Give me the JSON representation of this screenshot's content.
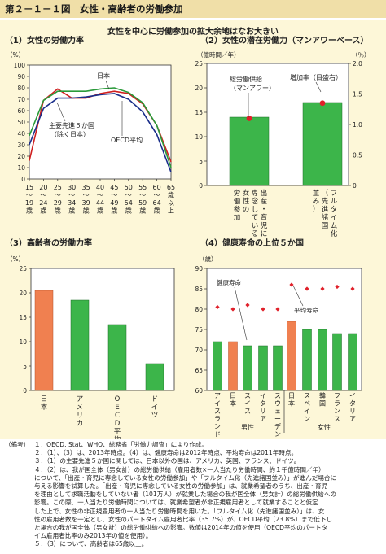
{
  "figure_title": "第２－１－１図　女性・高齢者の労働参加",
  "subtitle": "女性を中心に労働参加の拡大余地はなお大きい",
  "colors": {
    "japan": "#d02020",
    "g5": "#2a9a3a",
    "oecd": "#1a2e8a",
    "bar_green": "#3cb54a",
    "bar_orange": "#f08050",
    "dot": "#e0202a",
    "panel_bg": "#fdf7d8",
    "header_bg": "#f0dfa8"
  },
  "chart_data": [
    {
      "id": "panel1",
      "type": "line",
      "title": "（1）女性の労働力率",
      "unit": "（%）",
      "x": [
        "15~19歳",
        "20~24歳",
        "25~29歳",
        "30~34歳",
        "35~39歳",
        "40~44歳",
        "45~49歳",
        "50~54歳",
        "55~59歳",
        "60~64歳",
        "65歳以上"
      ],
      "x_labels": [
        [
          "15",
          "〜",
          "19",
          "歳"
        ],
        [
          "20",
          "〜",
          "24",
          "歳"
        ],
        [
          "25",
          "〜",
          "29",
          "歳"
        ],
        [
          "30",
          "〜",
          "34",
          "歳"
        ],
        [
          "35",
          "〜",
          "39",
          "歳"
        ],
        [
          "40",
          "〜",
          "44",
          "歳"
        ],
        [
          "45",
          "〜",
          "49",
          "歳"
        ],
        [
          "50",
          "〜",
          "54",
          "歳"
        ],
        [
          "55",
          "〜",
          "59",
          "歳"
        ],
        [
          "60",
          "〜",
          "64",
          "歳"
        ],
        [
          "65",
          "歳",
          "以",
          "上"
        ]
      ],
      "ylim": [
        0,
        100
      ],
      "yticks": [
        0,
        10,
        20,
        30,
        40,
        50,
        60,
        70,
        80,
        90,
        100
      ],
      "series": [
        {
          "name": "日本",
          "values": [
            16,
            69,
            79,
            71,
            71,
            75,
            77,
            75,
            66,
            47,
            15
          ]
        },
        {
          "name": "主要先進５か国（除く日本）",
          "values": [
            38,
            69,
            77,
            77,
            77,
            79,
            80,
            76,
            67,
            47,
            10
          ]
        },
        {
          "name": "OECD平均",
          "values": [
            30,
            62,
            71,
            71,
            72,
            74,
            75,
            70,
            59,
            39,
            6
          ]
        }
      ],
      "labels": {
        "japan": "日本",
        "g5": [
          "主要先進５か国",
          "（除く日本）"
        ],
        "oecd": "OECD平均"
      }
    },
    {
      "id": "panel2",
      "type": "bar",
      "title": "（2）女性の潜在労働力（マンアワーベース）",
      "unit_left": "（億時間／年）",
      "unit_right": "（％）",
      "categories": [
        "出産・育児に専念している女性の労働参加",
        "フルタイム化（先進諸国並み）"
      ],
      "cat_labels": [
        [
          "出",
          "産",
          "・",
          "育",
          "児",
          "に"
        ],
        [
          "専",
          "念",
          "し",
          "て",
          "い",
          "る"
        ],
        [
          "女",
          "性",
          "の"
        ],
        [
          "労",
          "働",
          "参",
          "加"
        ]
      ],
      "cat_labels2": [
        [
          "フ",
          "ル",
          "タ",
          "イ",
          "ム",
          "化"
        ],
        [
          "（",
          "先",
          "進",
          "諸",
          "国"
        ],
        [
          "並",
          "み",
          "）"
        ]
      ],
      "values": [
        14,
        17
      ],
      "increase_rate": [
        1.1,
        1.35
      ],
      "ylim": [
        0,
        25
      ],
      "yticks": [
        0,
        5,
        10,
        15,
        20,
        25
      ],
      "ylim_right": [
        0,
        2.0
      ],
      "yticks_right": [
        "0",
        "0.5",
        "1.0",
        "1.5",
        "2.0"
      ],
      "annotations": {
        "supply": "総労働供給",
        "supply2": "（マンアワー）",
        "rate": "増加率（目盛右）"
      }
    },
    {
      "id": "panel3",
      "type": "bar",
      "title": "（3）高齢者の労働力率",
      "unit": "（%）",
      "categories": [
        "日本",
        "アメリカ",
        "OECD平均",
        "ドイツ"
      ],
      "cat_labels": [
        [
          "日",
          "本"
        ],
        [
          "ア",
          "メ",
          "リ",
          "カ"
        ],
        [
          "O",
          "E",
          "C",
          "D",
          "平",
          "均"
        ],
        [
          "ド",
          "イ",
          "ツ"
        ]
      ],
      "values": [
        20.5,
        18.5,
        13.5,
        5.5
      ],
      "ylim": [
        0,
        25
      ],
      "yticks": [
        0,
        5,
        10,
        15,
        20,
        25
      ]
    },
    {
      "id": "panel4",
      "type": "bar",
      "title": "（4）健康寿命の上位５か国",
      "unit": "（歳）",
      "ylim": [
        60,
        90
      ],
      "yticks": [
        60,
        65,
        70,
        75,
        80,
        85,
        90
      ],
      "groups": [
        {
          "name": "男性",
          "categories": [
            "アイスランド",
            "日本",
            "スイス",
            "イタリア",
            "スウェーデン"
          ],
          "cat_labels": [
            [
              "ア",
              "イ",
              "ス",
              "ラ",
              "ン",
              "ド"
            ],
            [
              "日",
              "本"
            ],
            [
              "ス",
              "イ",
              "ス"
            ],
            [
              "イ",
              "タ",
              "リ",
              "ア"
            ],
            [
              "ス",
              "ウ",
              "ェ",
              "ー",
              "デ",
              "ン"
            ]
          ],
          "healthy": [
            72,
            72,
            71,
            71,
            71
          ],
          "lifespan": [
            80.5,
            80,
            81,
            80,
            80
          ]
        },
        {
          "name": "女性",
          "categories": [
            "日本",
            "スペイン",
            "韓国",
            "フランス",
            "イタリア"
          ],
          "cat_labels": [
            [
              "日",
              "本"
            ],
            [
              "ス",
              "ペ",
              "イ",
              "ン"
            ],
            [
              "韓",
              "国"
            ],
            [
              "フ",
              "ラ",
              "ン",
              "ス"
            ],
            [
              "イ",
              "タ",
              "リ",
              "ア"
            ]
          ],
          "healthy": [
            77,
            75,
            75,
            74,
            74
          ],
          "lifespan": [
            86,
            85,
            85,
            85.5,
            85
          ]
        }
      ],
      "annotations": {
        "healthy": "健康寿命",
        "lifespan": "平均寿命"
      }
    }
  ],
  "notes": [
    {
      "label": "（備考）",
      "text": "１．OECD. Stat、WHO、総務省「労働力調査」により作成。"
    },
    {
      "label": "",
      "text": "２．（1）、（3）は、2013年時点。（4）は、健康寿命は2012年時点、平均寿命は2011年時点。"
    },
    {
      "label": "",
      "text": "３．（1）の主要先進５か国に関しては、日本以外の国は、アメリカ、英国、フランス、ドイツ。"
    },
    {
      "label": "",
      "text": "４．（2）は、我が国全体（男女計）の総労働供給（雇用者数×一人当たり労働時間、約１千億時間／年）\nについて、「出産・育児に専念している女性の労働参加」や「フルタイム化（先進諸国並み）」が進んだ場合に\n与える影響を試算した。「出産・育児に専念している女性の労働参加」は、就業希望者のうち、出産・育児\nを理由として求職活動をしていない者（101万人）が就業した場合の我が国全体（男女計）の総労働供給への\n影響。この際、一人当たり労働時間については、就業希望者が非正規雇用者として就業することと仮定\nした上で、女性の非正規雇用者の一人当たり労働時間を用いた。「フルタイム化（先進諸国並み）」は、女\n性の雇用者数を一定とし、女性のパートタイム雇用者比率（35.7%）が、OECD平均（23.8%）まで低下し\nた場合の我が国全体（男女計）の総労働供給への影響。数値は2014年の値を使用（OECD平均のパートタ\nイム雇用者比率のみ2013年の値を使用）。"
    },
    {
      "label": "",
      "text": "５．（3）について、高齢者は65歳以上。"
    }
  ]
}
